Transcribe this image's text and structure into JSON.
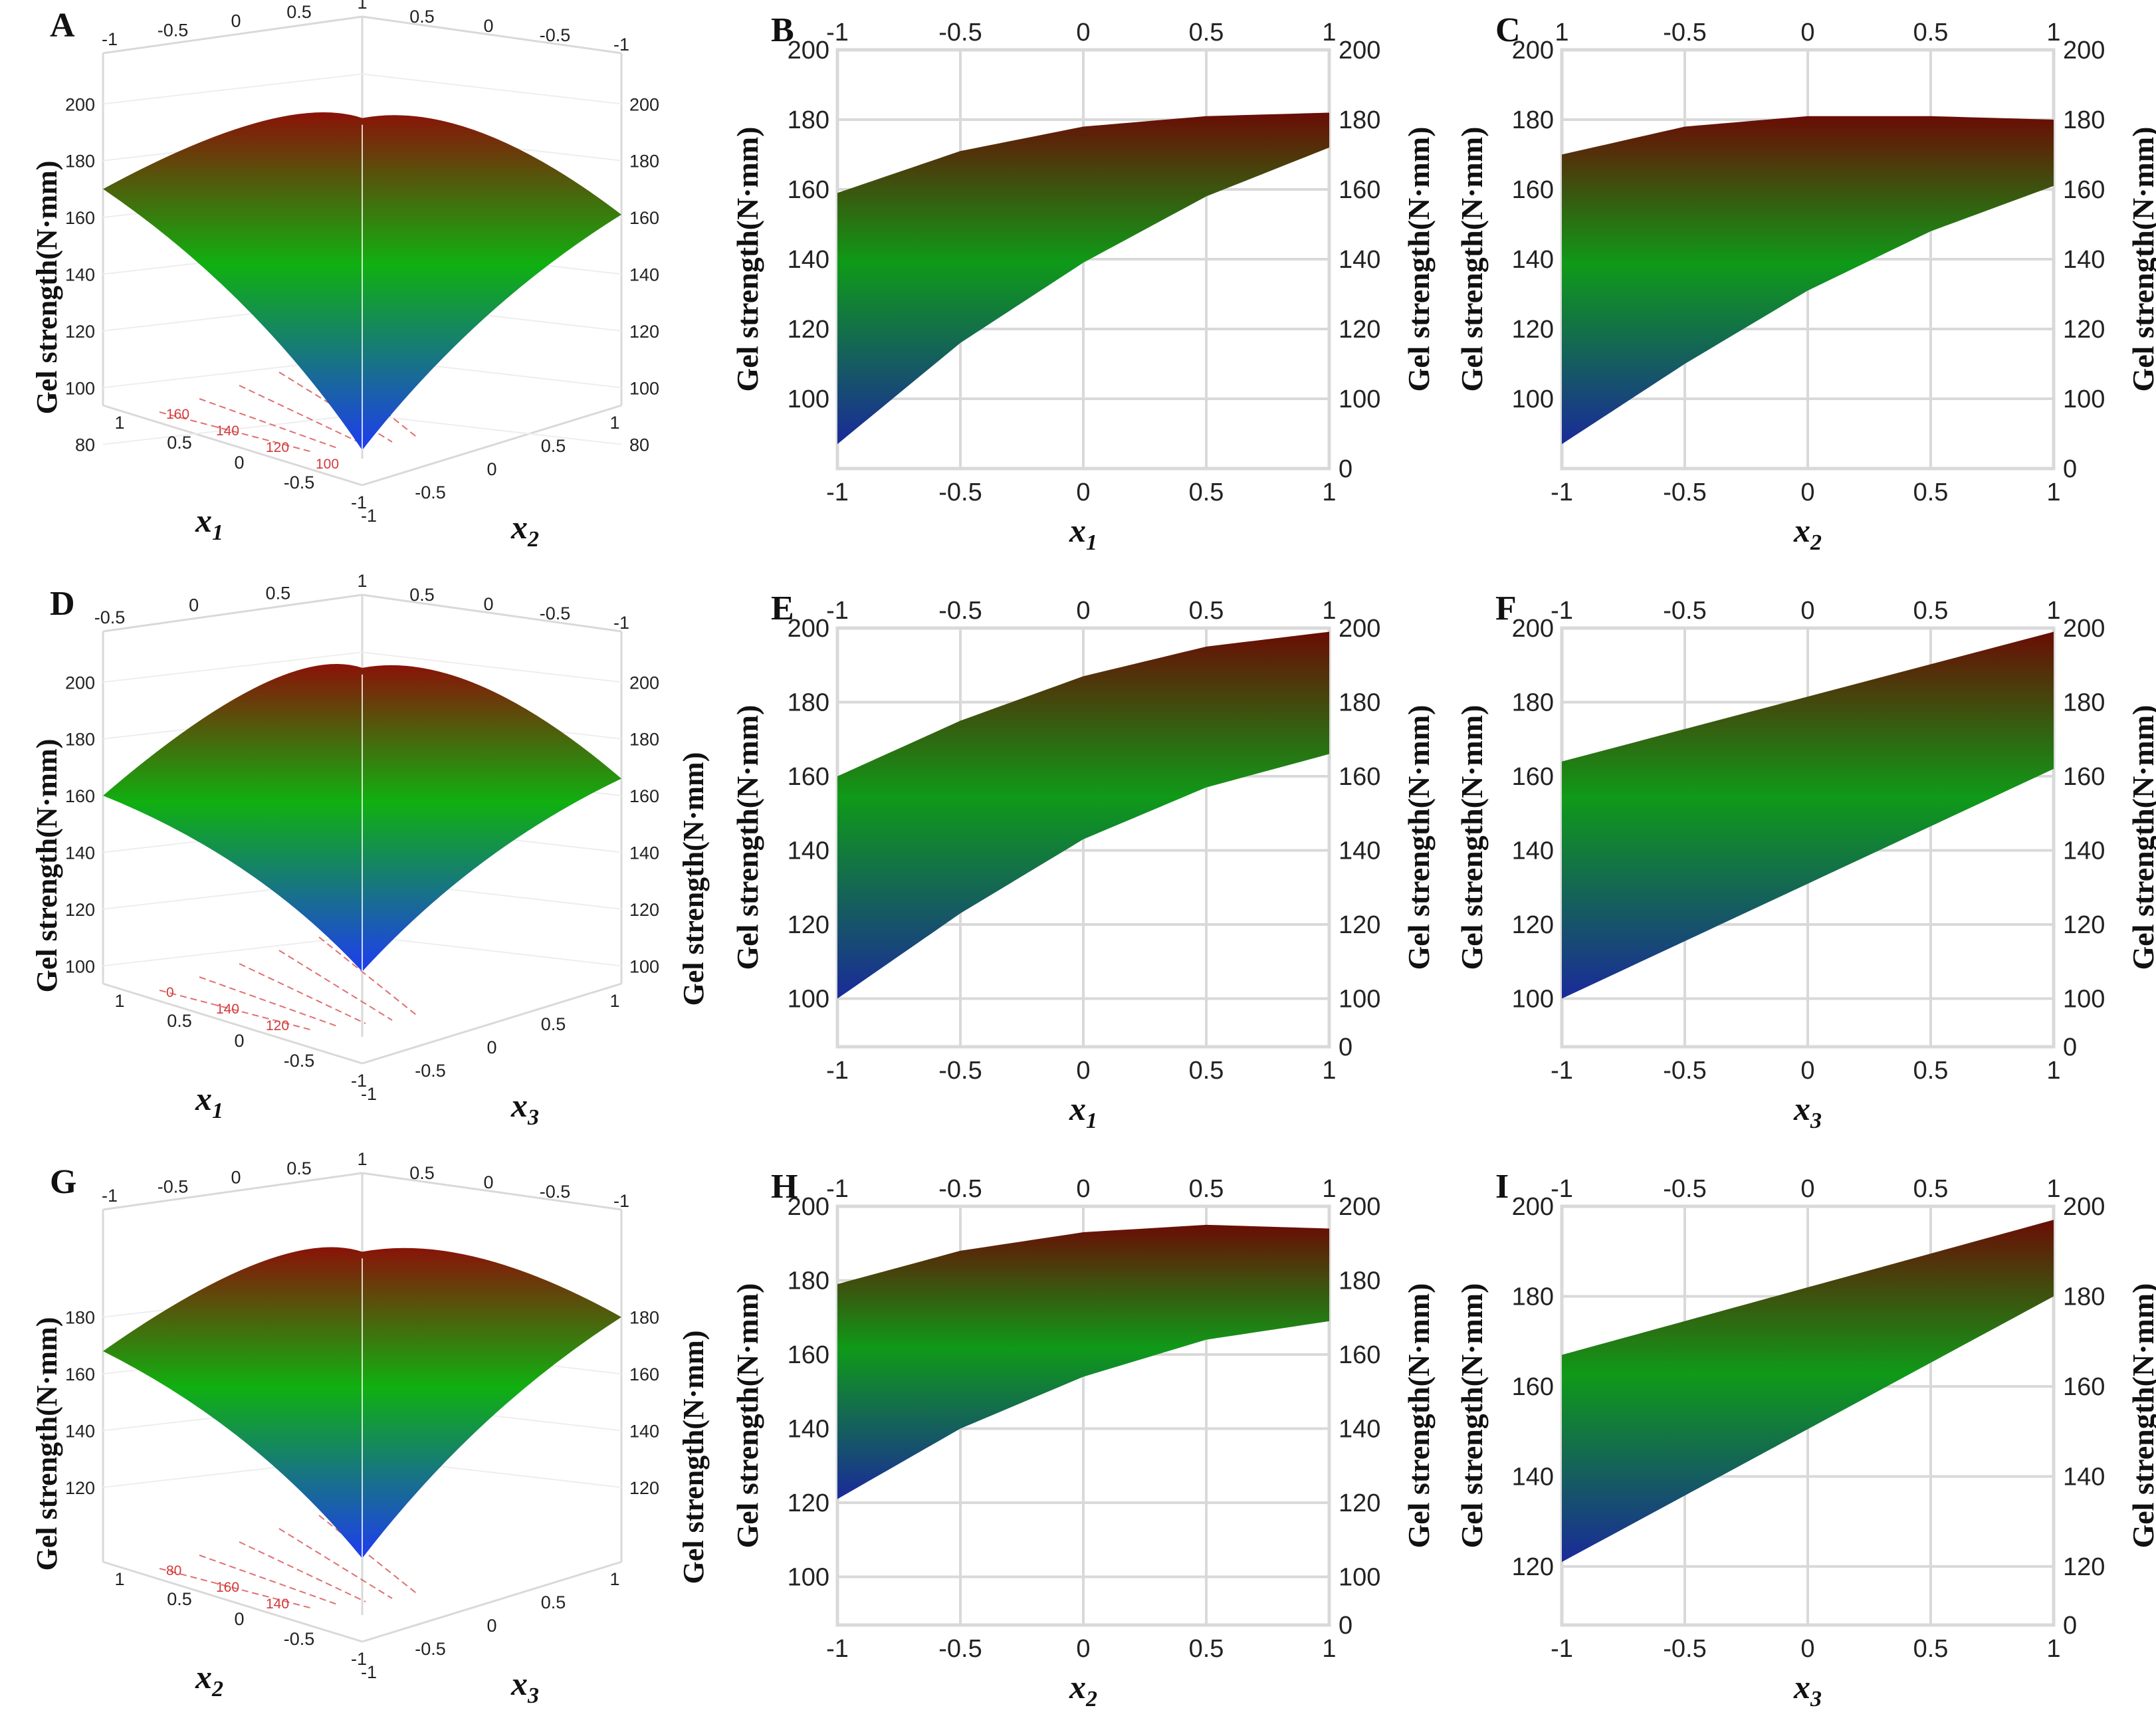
{
  "colors": {
    "surface_low": "#1e3cf0",
    "surface_mid": "#10b010",
    "surface_high": "#8a1208",
    "grid": "#d9d9d9"
  },
  "chart_data": [
    {
      "id": "A",
      "type": "surface3d",
      "panel_label": "A",
      "ylabel": "Gel strength(N·mm)",
      "xlabel": {
        "base": "x",
        "sub": "1"
      },
      "zlabel": {
        "base": "x",
        "sub": "2"
      },
      "x_ticks": [
        "1",
        "0.5",
        "0",
        "-0.5",
        "-1"
      ],
      "z_ticks": [
        "-1",
        "-0.5",
        "0",
        "0.5",
        "1"
      ],
      "top_ticks_left": [
        "-1",
        "-0.5",
        "0",
        "0.5",
        "1"
      ],
      "top_ticks_right": [
        "0.5",
        "0",
        "-0.5",
        "-1"
      ],
      "y_ticks_left": [
        "200",
        "180",
        "160",
        "140",
        "120",
        "100",
        "80"
      ],
      "y_ticks_right": [
        "200",
        "180",
        "160",
        "140",
        "120",
        "100",
        "80"
      ],
      "contour_labels": [
        "160",
        "140",
        "120",
        "100"
      ],
      "surface": {
        "left_edge": 170,
        "right_edge": 161,
        "apex": 188,
        "bottom": 78
      }
    },
    {
      "id": "B",
      "type": "area_band",
      "panel_label": "B",
      "ylabel": "Gel strength(N·mm)",
      "ylabel_right": "Gel strength(N·mm)",
      "xlabel": {
        "base": "x",
        "sub": "1"
      },
      "x_ticks": [
        "-1",
        "-0.5",
        "0",
        "0.5",
        "1"
      ],
      "top_ticks": [
        "-1",
        "-0.5",
        "0",
        "0.5",
        "1"
      ],
      "y_ticks_left": [
        "200",
        "180",
        "160",
        "140",
        "120",
        "100"
      ],
      "y_ticks_right": [
        "200",
        "180",
        "160",
        "140",
        "120",
        "100",
        "0"
      ],
      "ylim": [
        80,
        200
      ],
      "upper": {
        "x": [
          -1,
          -0.5,
          0,
          0.5,
          1
        ],
        "y": [
          159,
          171,
          178,
          181,
          182
        ]
      },
      "lower": {
        "x": [
          -1,
          -0.5,
          0,
          0.5,
          1
        ],
        "y": [
          87,
          116,
          139,
          158,
          172
        ]
      }
    },
    {
      "id": "C",
      "type": "area_band",
      "panel_label": "C",
      "ylabel": "Gel strength(N·mm)",
      "ylabel_right": "Gel strength(N·mm)",
      "xlabel": {
        "base": "x",
        "sub": "2"
      },
      "x_ticks": [
        "-1",
        "-0.5",
        "0",
        "0.5",
        "1"
      ],
      "top_ticks": [
        "1",
        "-0.5",
        "0",
        "0.5",
        "1"
      ],
      "y_ticks_left": [
        "200",
        "180",
        "160",
        "140",
        "120",
        "100"
      ],
      "y_ticks_right": [
        "200",
        "180",
        "160",
        "140",
        "120",
        "100",
        "0"
      ],
      "ylim": [
        80,
        200
      ],
      "upper": {
        "x": [
          -1,
          -0.5,
          0,
          0.5,
          1
        ],
        "y": [
          170,
          178,
          181,
          181,
          180
        ]
      },
      "lower": {
        "x": [
          -1,
          -0.5,
          0,
          0.5,
          1
        ],
        "y": [
          87,
          110,
          131,
          148,
          161
        ]
      }
    },
    {
      "id": "D",
      "type": "surface3d",
      "panel_label": "D",
      "ylabel": "Gel strength(N·mm)",
      "ylabel_right": "Gel strength(N·mm)",
      "xlabel": {
        "base": "x",
        "sub": "1"
      },
      "zlabel": {
        "base": "x",
        "sub": "3"
      },
      "x_ticks": [
        "1",
        "0.5",
        "0",
        "-0.5",
        "-1"
      ],
      "z_ticks": [
        "-1",
        "-0.5",
        "0",
        "0.5",
        "1"
      ],
      "top_ticks_left": [
        "-0.5",
        "0",
        "0.5",
        "1"
      ],
      "top_ticks_right": [
        "0.5",
        "0",
        "-0.5",
        "-1"
      ],
      "y_ticks_left": [
        "200",
        "180",
        "160",
        "140",
        "120",
        "100"
      ],
      "y_ticks_right": [
        "200",
        "180",
        "160",
        "140",
        "120",
        "100"
      ],
      "contour_labels": [
        "0",
        "140",
        "120"
      ],
      "surface": {
        "left_edge": 160,
        "right_edge": 166,
        "apex": 198,
        "bottom": 98
      }
    },
    {
      "id": "E",
      "type": "area_band",
      "panel_label": "E",
      "ylabel": "Gel strength(N·mm)",
      "ylabel_right": "Gel strength(N·mm)",
      "xlabel": {
        "base": "x",
        "sub": "1"
      },
      "x_ticks": [
        "-1",
        "-0.5",
        "0",
        "0.5",
        "1"
      ],
      "top_ticks": [
        "-1",
        "-0.5",
        "0",
        "0.5",
        "1"
      ],
      "y_ticks_left": [
        "200",
        "180",
        "160",
        "140",
        "120",
        "100"
      ],
      "y_ticks_right": [
        "200",
        "180",
        "160",
        "140",
        "120",
        "100",
        "0"
      ],
      "ylim": [
        87,
        200
      ],
      "upper": {
        "x": [
          -1,
          -0.5,
          0,
          0.5,
          1
        ],
        "y": [
          160,
          175,
          187,
          195,
          199
        ]
      },
      "lower": {
        "x": [
          -1,
          -0.5,
          0,
          0.5,
          1
        ],
        "y": [
          100,
          123,
          143,
          157,
          166
        ]
      }
    },
    {
      "id": "F",
      "type": "area_band",
      "panel_label": "F",
      "ylabel": "Gel strength(N·mm)",
      "ylabel_right": "Gel strength(N·mm)",
      "xlabel": {
        "base": "x",
        "sub": "3"
      },
      "x_ticks": [
        "-1",
        "-0.5",
        "0",
        "0.5",
        "1"
      ],
      "top_ticks": [
        "-1",
        "-0.5",
        "0",
        "0.5",
        "1"
      ],
      "y_ticks_left": [
        "200",
        "180",
        "160",
        "140",
        "120",
        "100"
      ],
      "y_ticks_right": [
        "200",
        "180",
        "160",
        "140",
        "120",
        "100",
        "0"
      ],
      "ylim": [
        87,
        200
      ],
      "upper": {
        "x": [
          -1,
          1
        ],
        "y": [
          164,
          199
        ]
      },
      "lower": {
        "x": [
          -1,
          1
        ],
        "y": [
          100,
          162
        ]
      }
    },
    {
      "id": "G",
      "type": "surface3d",
      "panel_label": "G",
      "ylabel": "Gel strength(N·mm)",
      "ylabel_right": "Gel strength(N·mm)",
      "xlabel": {
        "base": "x",
        "sub": "2"
      },
      "zlabel": {
        "base": "x",
        "sub": "3"
      },
      "x_ticks": [
        "1",
        "0.5",
        "0",
        "-0.5",
        "-1"
      ],
      "z_ticks": [
        "-1",
        "-0.5",
        "0",
        "0.5",
        "1"
      ],
      "top_ticks_left": [
        "-1",
        "-0.5",
        "0",
        "0.5",
        "1"
      ],
      "top_ticks_right": [
        "0.5",
        "0",
        "-0.5",
        "-1"
      ],
      "y_ticks_left": [
        "180",
        "160",
        "140",
        "120"
      ],
      "y_ticks_right": [
        "180",
        "160",
        "140",
        "120"
      ],
      "contour_labels": [
        "80",
        "160",
        "140"
      ],
      "surface": {
        "left_edge": 168,
        "right_edge": 180,
        "apex": 196,
        "bottom": 95
      }
    },
    {
      "id": "H",
      "type": "area_band",
      "panel_label": "H",
      "ylabel": "Gel strength(N·mm)",
      "ylabel_right": "Gel strength(N·mm)",
      "xlabel": {
        "base": "x",
        "sub": "2"
      },
      "x_ticks": [
        "-1",
        "-0.5",
        "0",
        "0.5",
        "1"
      ],
      "top_ticks": [
        "-1",
        "-0.5",
        "0",
        "0.5",
        "1"
      ],
      "y_ticks_left": [
        "200",
        "180",
        "160",
        "140",
        "120",
        "100"
      ],
      "y_ticks_right": [
        "200",
        "180",
        "160",
        "140",
        "120",
        "100",
        "0"
      ],
      "ylim": [
        87,
        200
      ],
      "upper": {
        "x": [
          -1,
          -0.5,
          0,
          0.5,
          1
        ],
        "y": [
          179,
          188,
          193,
          195,
          194
        ]
      },
      "lower": {
        "x": [
          -1,
          -0.5,
          0,
          0.5,
          1
        ],
        "y": [
          121,
          140,
          154,
          164,
          169
        ]
      }
    },
    {
      "id": "I",
      "type": "area_band",
      "panel_label": "I",
      "ylabel": "Gel strength(N·mm)",
      "ylabel_right": "Gel strength(N·mm)",
      "xlabel": {
        "base": "x",
        "sub": "3"
      },
      "x_ticks": [
        "-1",
        "-0.5",
        "0",
        "0.5",
        "1"
      ],
      "top_ticks": [
        "-1",
        "-0.5",
        "0",
        "0.5",
        "1"
      ],
      "y_ticks_left": [
        "200",
        "180",
        "160",
        "140",
        "120"
      ],
      "y_ticks_right": [
        "200",
        "180",
        "160",
        "140",
        "120",
        "0"
      ],
      "ylim": [
        107,
        200
      ],
      "upper": {
        "x": [
          -1,
          1
        ],
        "y": [
          167,
          197
        ]
      },
      "lower": {
        "x": [
          -1,
          1
        ],
        "y": [
          121,
          180
        ]
      }
    }
  ]
}
